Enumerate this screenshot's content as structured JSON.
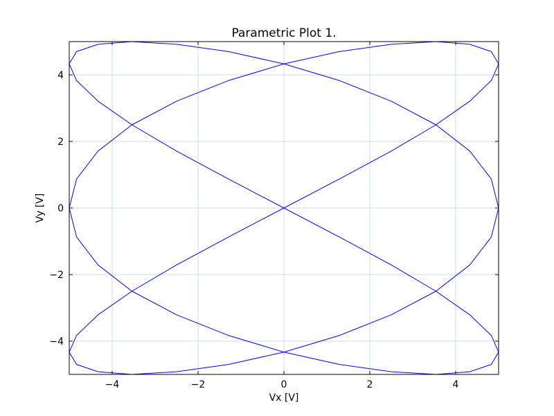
{
  "chart_data": {
    "type": "line",
    "title": "Parametric Plot 1.",
    "x_label": "Vx [V]",
    "y_label": "Vy [V]",
    "x": [
      5,
      4.83,
      4.33,
      3.54,
      2.5,
      1.29,
      0,
      -1.29,
      -2.5,
      -3.54,
      -4.33,
      -4.83,
      -5,
      -4.83,
      -4.33,
      -3.54,
      -2.5,
      -1.29,
      0,
      1.29,
      2.5,
      3.54,
      4.33,
      4.83,
      5,
      4.83,
      4.33,
      3.54,
      2.5,
      1.29,
      0,
      -1.29,
      -2.5,
      -3.54,
      -4.33,
      -4.83,
      -5,
      -4.83,
      -4.33,
      -3.54,
      -2.5,
      -1.29,
      0,
      1.29,
      2.5,
      3.54,
      4.33,
      4.83,
      5,
      4.83,
      4.33,
      3.54,
      2.5,
      1.29,
      0,
      -1.29,
      -2.5,
      -3.54,
      -4.33,
      -4.83,
      -5,
      -4.83,
      -4.33,
      -3.54,
      -2.5,
      -1.29,
      0,
      1.29,
      2.5,
      3.54,
      4.33,
      4.83,
      5
    ],
    "values": [
      0,
      0.87,
      1.71,
      2.5,
      3.21,
      3.83,
      4.33,
      4.7,
      4.92,
      5,
      4.92,
      4.7,
      4.33,
      3.83,
      3.21,
      2.5,
      1.71,
      0.87,
      0,
      -0.87,
      -1.71,
      -2.5,
      -3.21,
      -3.83,
      -4.33,
      -4.7,
      -4.92,
      -5,
      -4.92,
      -4.7,
      -4.33,
      -3.83,
      -3.21,
      -2.5,
      -1.71,
      -0.87,
      0,
      0.87,
      1.71,
      2.5,
      3.21,
      3.83,
      4.33,
      4.7,
      4.92,
      5,
      4.92,
      4.7,
      4.33,
      3.83,
      3.21,
      2.5,
      1.71,
      0.87,
      0,
      -0.87,
      -1.71,
      -2.5,
      -3.21,
      -3.83,
      -4.33,
      -4.7,
      -4.92,
      -5,
      -4.92,
      -4.7,
      -4.33,
      -3.83,
      -3.21,
      -2.5,
      -1.71,
      -0.87,
      0
    ],
    "color": "#0000ff",
    "xlim": [
      -5,
      5
    ],
    "ylim": [
      -5,
      5
    ],
    "xticks": [
      {
        "value": -4,
        "label": "−4"
      },
      {
        "value": -2,
        "label": "−2"
      },
      0,
      2,
      4
    ],
    "yticks": [
      {
        "value": -4,
        "label": "−4"
      },
      {
        "value": -2,
        "label": "−2"
      },
      0,
      2,
      4
    ],
    "grid": true
  }
}
